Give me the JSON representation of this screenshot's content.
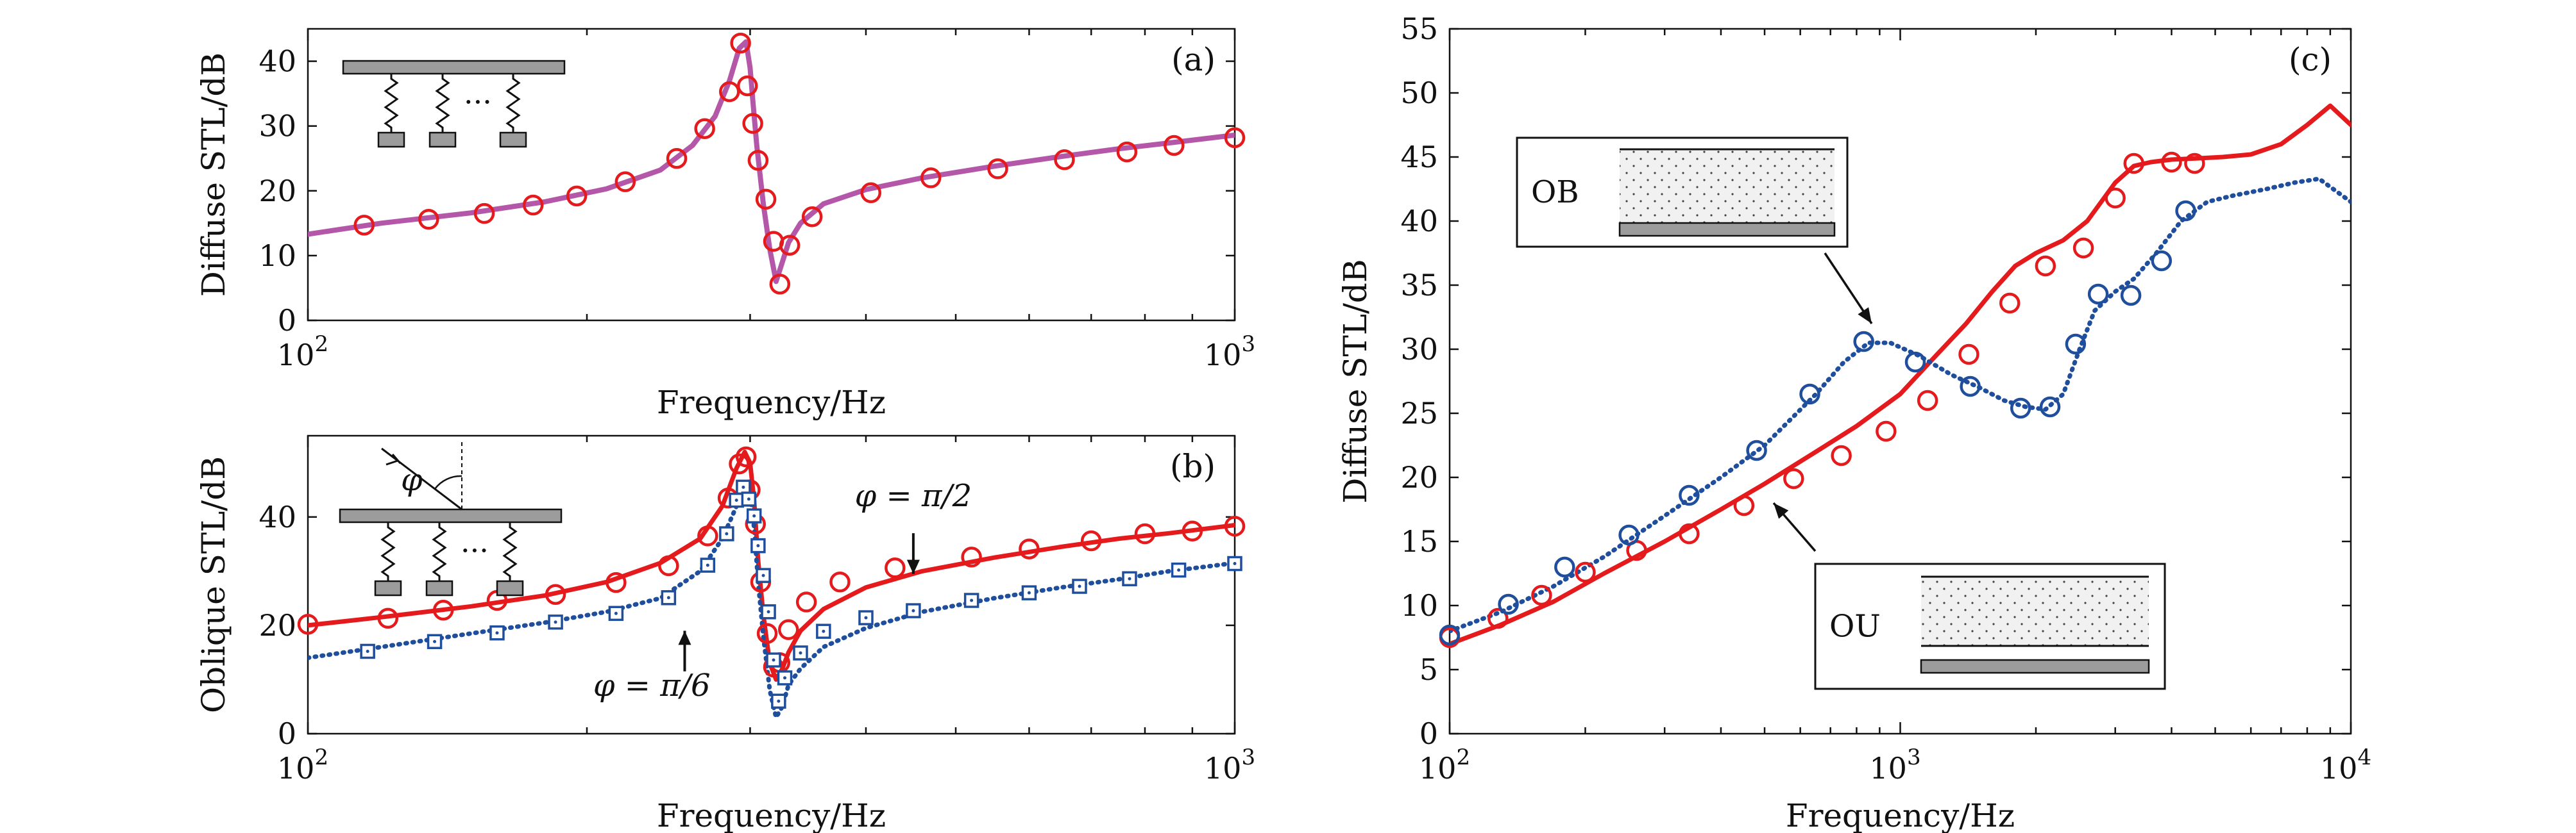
{
  "colors": {
    "red": "#e41a1c",
    "blue": "#1f4e9c",
    "magenta": "#b557a8",
    "grey": "#9c9c9c"
  },
  "chart_data": [
    {
      "id": "a",
      "type": "line",
      "panel_label": "(a)",
      "xlabel": "Frequency/Hz",
      "ylabel": "Diffuse STL/dB",
      "xscale": "log",
      "xlim": [
        100,
        1000
      ],
      "ylim": [
        0,
        45
      ],
      "yticks": [
        0,
        10,
        20,
        30,
        40
      ],
      "xticks": [
        {
          "value": 100,
          "base": "10",
          "exp": "2"
        },
        {
          "value": 1000,
          "base": "10",
          "exp": "3"
        }
      ],
      "series": [
        {
          "style": "solid-line",
          "color": "#b557a8",
          "x": [
            100,
            120,
            150,
            180,
            210,
            240,
            260,
            275,
            285,
            292,
            297,
            300,
            302,
            305,
            310,
            315,
            320,
            325,
            330,
            340,
            360,
            400,
            460,
            550,
            650,
            750,
            850,
            1000
          ],
          "y": [
            13.3,
            15,
            16.6,
            18.3,
            20.3,
            23.2,
            27,
            31.5,
            37,
            42,
            43,
            39,
            34,
            27,
            18,
            11,
            6,
            9,
            12,
            15,
            18,
            20.2,
            22,
            23.8,
            25.3,
            26.5,
            27.4,
            28.6
          ]
        },
        {
          "style": "circle-markers",
          "color": "#e41a1c",
          "x": [
            115,
            135,
            155,
            175,
            195,
            220,
            250,
            268,
            285,
            293,
            298,
            302,
            306,
            312,
            318,
            323,
            331,
            350,
            405,
            470,
            555,
            655,
            765,
            860,
            1000
          ],
          "y": [
            14.7,
            15.6,
            16.5,
            17.8,
            19.2,
            21.4,
            25,
            29.6,
            35.3,
            42.8,
            36.2,
            30.4,
            24.7,
            18.7,
            12.2,
            5.6,
            11.6,
            16,
            19.7,
            22,
            23.4,
            24.8,
            26,
            27,
            28.2
          ]
        }
      ],
      "inset": "panel-schematic"
    },
    {
      "id": "b",
      "type": "line",
      "panel_label": "(b)",
      "xlabel": "Frequency/Hz",
      "ylabel": "Oblique STL/dB",
      "xscale": "log",
      "xlim": [
        100,
        1000
      ],
      "ylim": [
        0,
        55
      ],
      "yticks": [
        0,
        20,
        40
      ],
      "xticks": [
        {
          "value": 100,
          "base": "10",
          "exp": "2"
        },
        {
          "value": 1000,
          "base": "10",
          "exp": "3"
        }
      ],
      "annotations": [
        {
          "text": "φ = π/2",
          "x": 450,
          "y": 42
        },
        {
          "text": "φ = π/6",
          "x": 235,
          "y": 7
        }
      ],
      "series": [
        {
          "style": "solid-line",
          "color": "#e41a1c",
          "marker": "circle",
          "x": [
            100,
            120,
            150,
            180,
            210,
            240,
            265,
            280,
            290,
            296,
            300,
            303,
            306,
            310,
            315,
            320,
            325,
            330,
            340,
            360,
            400,
            460,
            550,
            650,
            750,
            850,
            1000
          ],
          "y": [
            20,
            21.5,
            23.5,
            25.5,
            28,
            31.5,
            36,
            42,
            49,
            52,
            50,
            43,
            32,
            22,
            13,
            10,
            12,
            15,
            19,
            23,
            27,
            30,
            32.5,
            34.5,
            36,
            37,
            38.5
          ],
          "marker_x": [
            100,
            122,
            140,
            160,
            185,
            215,
            245,
            270,
            284,
            292,
            297,
            300,
            304,
            308,
            313,
            318,
            323,
            330,
            345,
            375,
            430,
            520,
            600,
            700,
            800,
            900,
            1000
          ],
          "marker_y": [
            20.2,
            21.3,
            22.8,
            24.6,
            25.7,
            27.9,
            31,
            36.5,
            43.5,
            49.8,
            51.1,
            45,
            38.7,
            28,
            18.5,
            12.3,
            13.1,
            19.2,
            24.3,
            28,
            30.6,
            32.6,
            34.1,
            35.6,
            36.9,
            37.4,
            38.3
          ]
        },
        {
          "style": "dotted-line",
          "color": "#1f4e9c",
          "marker": "square",
          "x": [
            100,
            120,
            150,
            180,
            210,
            240,
            265,
            280,
            290,
            296,
            300,
            303,
            306,
            310,
            315,
            320,
            325,
            330,
            340,
            360,
            400,
            460,
            550,
            650,
            750,
            850,
            1000
          ],
          "y": [
            14,
            16,
            18.5,
            20.5,
            22.5,
            25,
            30,
            36,
            42,
            45,
            44,
            38,
            28,
            18,
            8,
            3,
            5,
            9,
            12,
            16,
            19.5,
            22.5,
            25,
            27,
            28.5,
            30,
            31.5
          ],
          "marker_x": [
            116,
            137,
            160,
            185,
            215,
            245,
            270,
            283,
            290,
            295,
            299,
            303,
            306,
            310,
            314,
            318,
            322,
            327,
            340,
            360,
            400,
            450,
            520,
            600,
            680,
            770,
            870,
            1000
          ],
          "marker_y": [
            15.2,
            17,
            18.6,
            20.6,
            22.2,
            25.1,
            31.1,
            36.9,
            43.1,
            45.5,
            43.3,
            40.2,
            34.7,
            29.2,
            22.5,
            13.6,
            6,
            10.3,
            14.9,
            18.9,
            21.4,
            22.7,
            24.6,
            26,
            27.2,
            28.6,
            30.2,
            31.4
          ]
        }
      ],
      "inset": "panel-schematic-with-incidence"
    },
    {
      "id": "c",
      "type": "line",
      "panel_label": "(c)",
      "xlabel": "Frequency/Hz",
      "ylabel": "Diffuse STL/dB",
      "xscale": "log",
      "xlim": [
        100,
        10000
      ],
      "ylim": [
        0,
        55
      ],
      "yticks": [
        0,
        5,
        10,
        15,
        20,
        25,
        30,
        35,
        40,
        45,
        50,
        55
      ],
      "xticks": [
        {
          "value": 100,
          "base": "10",
          "exp": "2"
        },
        {
          "value": 1000,
          "base": "10",
          "exp": "3"
        },
        {
          "value": 10000,
          "base": "10",
          "exp": "4"
        }
      ],
      "legend_boxes": [
        {
          "label": "OB",
          "target_series": 1
        },
        {
          "label": "OU",
          "target_series": 0
        }
      ],
      "series": [
        {
          "style": "solid-line",
          "color": "#e41a1c",
          "marker": "circle",
          "x": [
            100,
            130,
            170,
            220,
            300,
            400,
            500,
            650,
            800,
            1000,
            1200,
            1400,
            1600,
            1800,
            2000,
            2300,
            2600,
            3000,
            3300,
            3600,
            4000,
            4600,
            5200,
            6000,
            7000,
            8000,
            9000,
            10000
          ],
          "y": [
            7,
            8.5,
            10.3,
            12.5,
            15,
            17.5,
            19.5,
            22,
            24,
            26.5,
            29.5,
            32,
            34.5,
            36.5,
            37.5,
            38.5,
            40,
            43,
            44.3,
            44.6,
            44.8,
            44.9,
            45,
            45.2,
            46,
            47.5,
            49,
            47.5
          ],
          "marker_x": [
            100,
            128,
            160,
            200,
            260,
            340,
            450,
            580,
            740,
            930,
            1150,
            1420,
            1750,
            2100,
            2550,
            3000,
            3300,
            4000,
            4500
          ],
          "marker_y": [
            7.5,
            9,
            10.8,
            12.6,
            14.3,
            15.6,
            17.8,
            19.9,
            21.7,
            23.6,
            26,
            29.6,
            33.6,
            36.5,
            37.9,
            41.8,
            44.5,
            44.6,
            44.5
          ]
        },
        {
          "style": "dotted-line",
          "color": "#1f4e9c",
          "marker": "circle",
          "x": [
            100,
            130,
            170,
            220,
            300,
            400,
            500,
            650,
            750,
            850,
            950,
            1100,
            1300,
            1500,
            1700,
            1900,
            2100,
            2300,
            2500,
            2700,
            3000,
            3300,
            3700,
            4200,
            4800,
            5500,
            6500,
            7500,
            8500,
            10000
          ],
          "y": [
            8,
            9.5,
            11.5,
            13.8,
            17,
            20,
            22.5,
            26.5,
            29,
            30.5,
            30.5,
            29.5,
            28,
            27,
            26,
            25.5,
            25.3,
            26.5,
            30,
            33,
            34.5,
            35.5,
            37.5,
            40,
            41.5,
            42,
            42.5,
            43,
            43.3,
            41.5
          ],
          "marker_x": [
            100,
            135,
            180,
            250,
            340,
            480,
            630,
            830,
            1080,
            1430,
            1850,
            2150,
            2450,
            2750,
            3250,
            3800,
            4300
          ],
          "marker_y": [
            7.7,
            10.1,
            13,
            15.5,
            18.6,
            22.1,
            26.5,
            30.6,
            29,
            27.1,
            25.4,
            25.5,
            30.4,
            34.3,
            34.2,
            36.9,
            40.8
          ]
        }
      ]
    }
  ]
}
